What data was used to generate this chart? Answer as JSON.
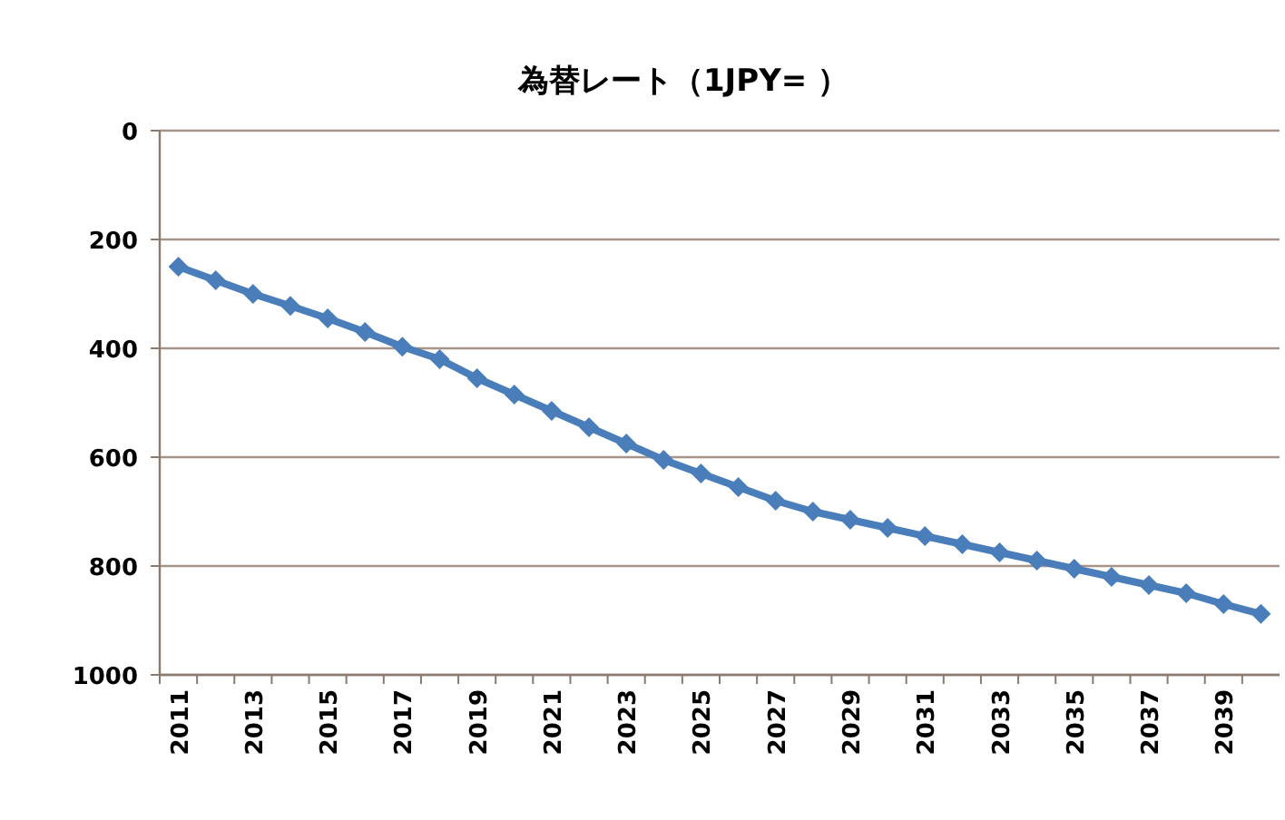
{
  "chart_data": {
    "type": "line",
    "title": "為替レート（1JPY= ）",
    "categories": [
      "2011",
      null,
      "2013",
      null,
      "2015",
      null,
      "2017",
      null,
      "2019",
      null,
      "2021",
      null,
      "2023",
      null,
      "2025",
      null,
      "2027",
      null,
      "2029",
      null,
      "2031",
      null,
      "2033",
      null,
      "2035",
      null,
      "2037",
      null,
      "2039",
      null
    ],
    "series": [
      {
        "color": "#4a7ebb",
        "values": [
          250,
          275,
          300,
          322,
          345,
          370,
          397,
          420,
          455,
          485,
          515,
          545,
          575,
          605,
          630,
          655,
          680,
          700,
          715,
          730,
          745,
          760,
          775,
          790,
          805,
          820,
          835,
          850,
          870,
          888
        ]
      }
    ],
    "ylim": [
      1000,
      0
    ],
    "yticks": [
      0,
      200,
      400,
      600,
      800,
      1000
    ],
    "grid": "y",
    "marker": "diamond",
    "line_style": "solid"
  }
}
